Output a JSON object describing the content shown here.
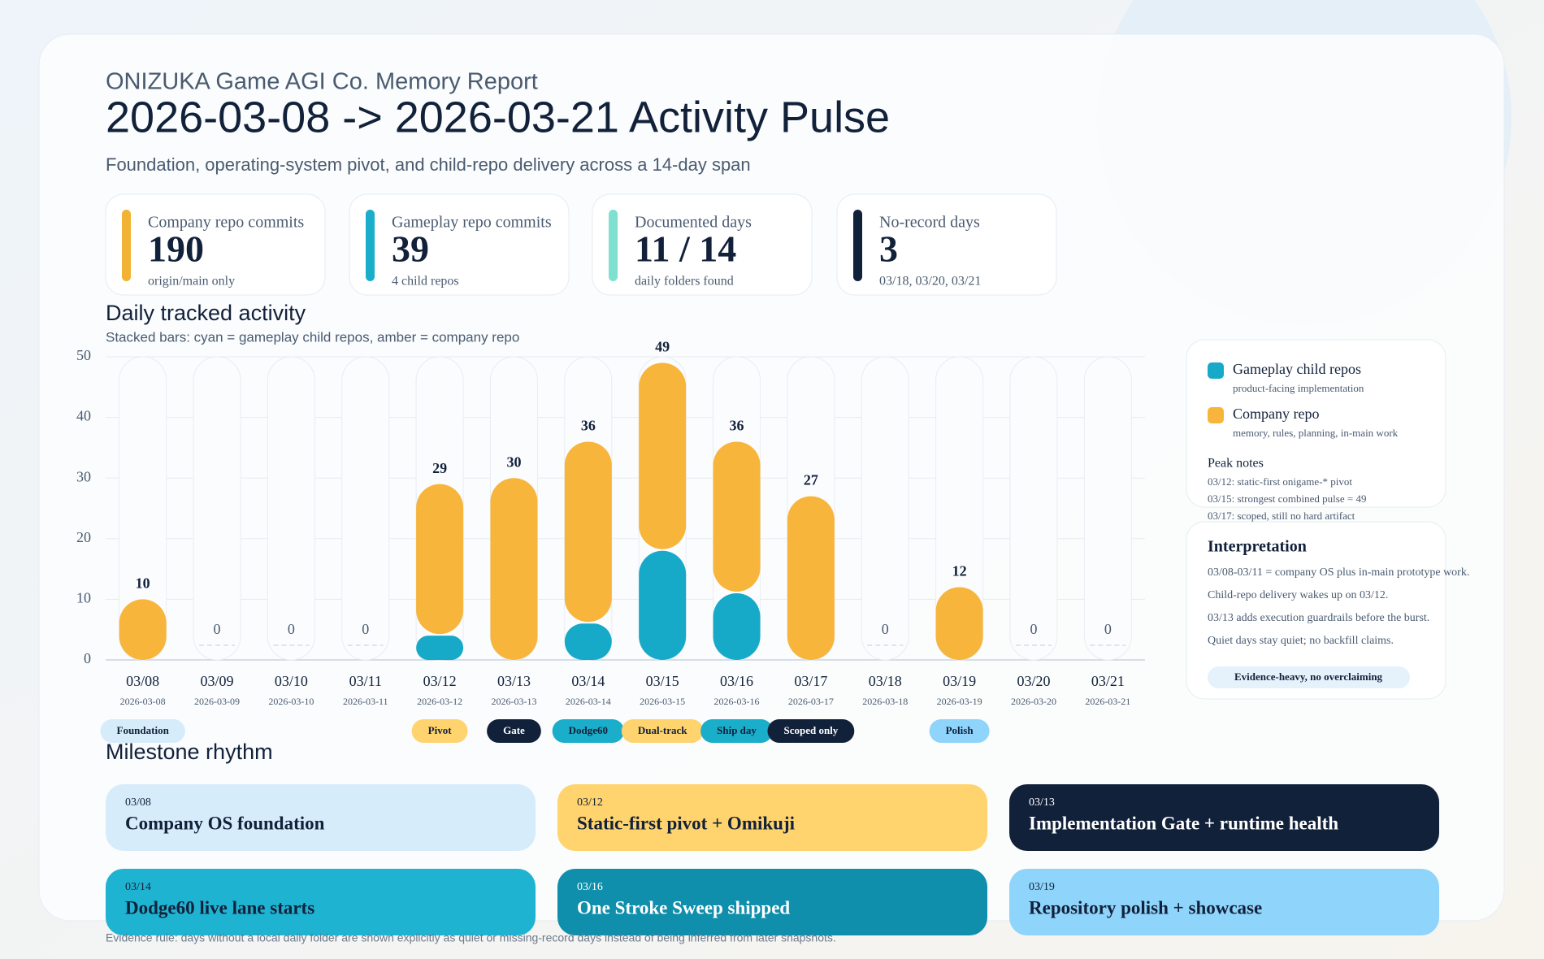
{
  "header": {
    "overline": "ONIZUKA Game AGI Co. Memory Report",
    "title": "2026-03-08 -> 2026-03-21 Activity Pulse",
    "subtitle": "Foundation, operating-system pivot, and child-repo delivery across a 14-day span"
  },
  "kpis": [
    {
      "label": "Company repo commits",
      "value": "190",
      "note": "origin/main only"
    },
    {
      "label": "Gameplay repo commits",
      "value": "39",
      "note": "4 child repos"
    },
    {
      "label": "Documented days",
      "value": "11 / 14",
      "note": "daily folders found"
    },
    {
      "label": "No-record days",
      "value": "3",
      "note": "03/18, 03/20, 03/21"
    }
  ],
  "chart_data": {
    "type": "bar",
    "stacked": true,
    "title": "Daily tracked activity",
    "subtitle": "Stacked bars: cyan = gameplay child repos, amber = company repo",
    "categories": [
      "03/08",
      "03/09",
      "03/10",
      "03/11",
      "03/12",
      "03/13",
      "03/14",
      "03/15",
      "03/16",
      "03/17",
      "03/18",
      "03/19",
      "03/20",
      "03/21"
    ],
    "dates": [
      "2026-03-08",
      "2026-03-09",
      "2026-03-10",
      "2026-03-11",
      "2026-03-12",
      "2026-03-13",
      "2026-03-14",
      "2026-03-15",
      "2026-03-16",
      "2026-03-17",
      "2026-03-18",
      "2026-03-19",
      "2026-03-20",
      "2026-03-21"
    ],
    "series": [
      {
        "name": "Gameplay child repos",
        "color": "#17a9c8",
        "values": [
          0,
          0,
          0,
          0,
          4,
          0,
          6,
          18,
          11,
          0,
          0,
          0,
          0,
          0
        ]
      },
      {
        "name": "Company repo",
        "color": "#f7b53c",
        "values": [
          10,
          0,
          0,
          0,
          25,
          30,
          30,
          31,
          25,
          27,
          0,
          12,
          0,
          0
        ]
      }
    ],
    "totals": [
      10,
      0,
      0,
      0,
      29,
      30,
      36,
      49,
      36,
      27,
      0,
      12,
      0,
      0
    ],
    "ylim": [
      0,
      50
    ],
    "yticks": [
      0,
      10,
      20,
      30,
      40,
      50
    ],
    "grid": true,
    "tags": [
      {
        "date": "03/08",
        "label": "Foundation"
      },
      {
        "date": "03/12",
        "label": "Pivot"
      },
      {
        "date": "03/13",
        "label": "Gate"
      },
      {
        "date": "03/14",
        "label": "Dodge60"
      },
      {
        "date": "03/15",
        "label": "Dual-track"
      },
      {
        "date": "03/16",
        "label": "Ship day"
      },
      {
        "date": "03/17",
        "label": "Scoped only"
      },
      {
        "date": "03/19",
        "label": "Polish"
      }
    ]
  },
  "legend_notes": [
    "product-facing implementation",
    "memory, rules, planning, in-main work"
  ],
  "peak_notes": {
    "title": "Peak notes",
    "lines": [
      "03/12: static-first onigame-* pivot",
      "03/15: strongest combined pulse = 49",
      "03/17: scoped, still no hard artifact"
    ]
  },
  "interpretation": {
    "title": "Interpretation",
    "lines": [
      "03/08-03/11 = company OS plus in-main prototype work.",
      "Child-repo delivery wakes up on 03/12.",
      "03/13 adds execution guardrails before the burst.",
      "Quiet days stay quiet; no backfill claims."
    ],
    "badge": "Evidence-heavy, no overclaiming"
  },
  "milestones": {
    "title": "Milestone rhythm",
    "items": [
      {
        "date": "03/08",
        "label": "Company OS foundation"
      },
      {
        "date": "03/12",
        "label": "Static-first pivot + Omikuji"
      },
      {
        "date": "03/13",
        "label": "Implementation Gate + runtime health"
      },
      {
        "date": "03/14",
        "label": "Dodge60 live lane starts"
      },
      {
        "date": "03/16",
        "label": "One Stroke Sweep shipped"
      },
      {
        "date": "03/19",
        "label": "Repository polish + showcase"
      }
    ]
  },
  "footer": "Evidence rule: days without a local daily folder are shown explicitly as quiet or missing-record days instead of being inferred from later snapshots."
}
